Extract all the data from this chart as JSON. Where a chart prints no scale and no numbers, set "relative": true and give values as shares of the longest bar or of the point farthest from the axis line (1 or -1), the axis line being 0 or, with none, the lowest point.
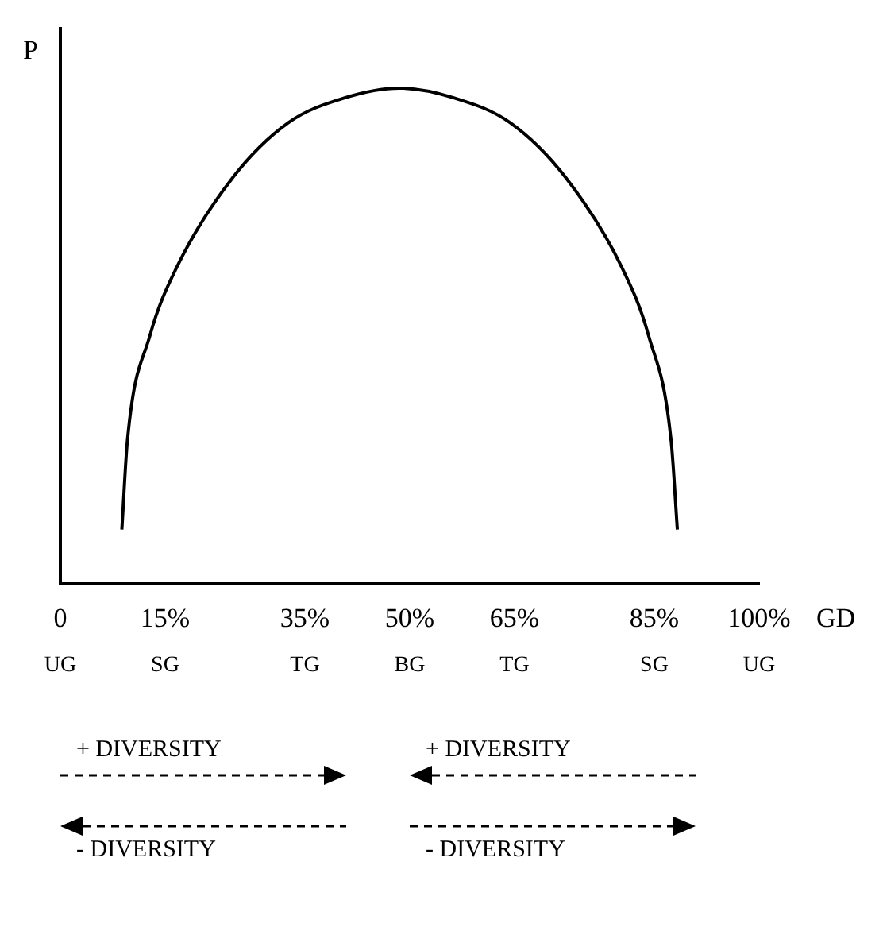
{
  "chart_data": {
    "type": "line",
    "relative": true,
    "ylabel": "P",
    "xlabel": "GD",
    "xlim": [
      0,
      100
    ],
    "xticks": [
      0,
      {
        "value": 15,
        "label": "15%"
      },
      {
        "value": 35,
        "label": "35%"
      },
      {
        "value": 50,
        "label": "50%"
      },
      {
        "value": 65,
        "label": "65%"
      },
      {
        "value": 85,
        "label": "85%"
      },
      {
        "value": 100,
        "label": "100%"
      }
    ],
    "grid": false,
    "legend": false,
    "marker": "none",
    "line_style": "solid",
    "series": [
      {
        "color": "#000000",
        "x": [
          8.8,
          9.6,
          12.8,
          16.7,
          24.7,
          32.6,
          40.6,
          48.5,
          56.4,
          64.4,
          72.3,
          80.3,
          84.2,
          87.4,
          88.3
        ],
        "values": [
          0.11,
          0.29,
          0.5,
          0.64,
          0.82,
          0.93,
          0.98,
          1,
          0.98,
          0.93,
          0.82,
          0.64,
          0.5,
          0.29,
          0.11
        ]
      }
    ],
    "annotations": [
      "UG",
      "SG",
      "TG",
      "BG",
      "TG",
      "SG",
      "UG",
      "+ DIVERSITY",
      "+ DIVERSITY",
      "- DIVERSITY",
      "- DIVERSITY"
    ]
  }
}
